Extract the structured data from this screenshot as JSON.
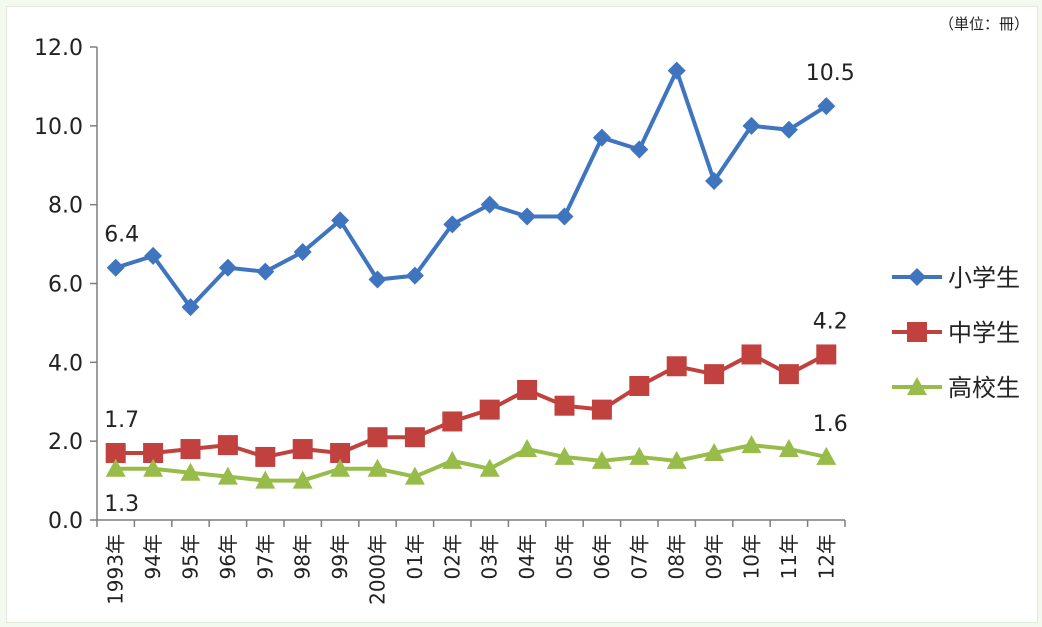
{
  "chart_data": {
    "type": "line",
    "unit_note": "（単位：冊）",
    "categories": [
      "1993年",
      "94年",
      "95年",
      "96年",
      "97年",
      "98年",
      "99年",
      "2000年",
      "01年",
      "02年",
      "03年",
      "04年",
      "05年",
      "06年",
      "07年",
      "08年",
      "09年",
      "10年",
      "11年",
      "12年"
    ],
    "ylim": [
      0,
      12
    ],
    "yticks": [
      "0.0",
      "2.0",
      "4.0",
      "6.0",
      "8.0",
      "10.0",
      "12.0"
    ],
    "grid": false,
    "legend_position": "right",
    "series": [
      {
        "name": "小学生",
        "color": "#3f74bf",
        "marker": "diamond",
        "values": [
          6.4,
          6.7,
          5.4,
          6.4,
          6.3,
          6.8,
          7.6,
          6.1,
          6.2,
          7.5,
          8.0,
          7.7,
          7.7,
          9.7,
          9.4,
          11.4,
          8.6,
          10.0,
          9.9,
          10.5
        ]
      },
      {
        "name": "中学生",
        "color": "#c0413d",
        "marker": "square",
        "values": [
          1.7,
          1.7,
          1.8,
          1.9,
          1.6,
          1.8,
          1.7,
          2.1,
          2.1,
          2.5,
          2.8,
          3.3,
          2.9,
          2.8,
          3.4,
          3.9,
          3.7,
          4.2,
          3.7,
          4.2
        ]
      },
      {
        "name": "高校生",
        "color": "#97bc4a",
        "marker": "triangle",
        "values": [
          1.3,
          1.3,
          1.2,
          1.1,
          1.0,
          1.0,
          1.3,
          1.3,
          1.1,
          1.5,
          1.3,
          1.8,
          1.6,
          1.5,
          1.6,
          1.5,
          1.7,
          1.9,
          1.8,
          1.6
        ]
      }
    ],
    "annotations": [
      {
        "series": 0,
        "index": 0,
        "text": "6.4",
        "pos": "above"
      },
      {
        "series": 0,
        "index": 19,
        "text": "10.5",
        "pos": "above"
      },
      {
        "series": 1,
        "index": 0,
        "text": "1.7",
        "pos": "above"
      },
      {
        "series": 1,
        "index": 19,
        "text": "4.2",
        "pos": "above"
      },
      {
        "series": 2,
        "index": 0,
        "text": "1.3",
        "pos": "below"
      },
      {
        "series": 2,
        "index": 19,
        "text": "1.6",
        "pos": "above"
      }
    ]
  }
}
